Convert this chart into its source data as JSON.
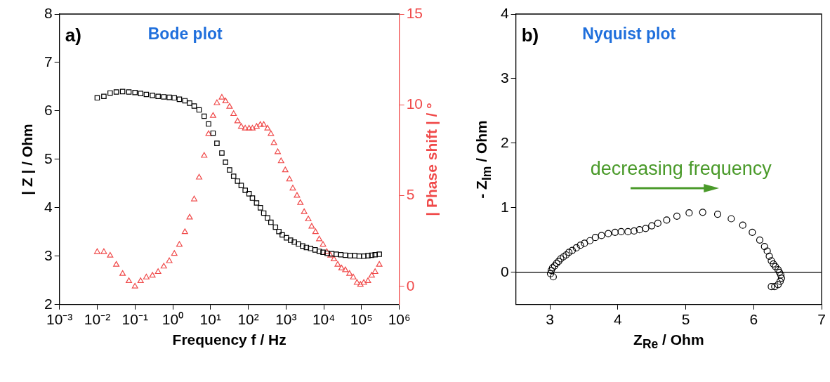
{
  "chart_data": [
    {
      "type": "scatter",
      "title": "Bode plot",
      "xlabel": "Frequency f / Hz",
      "ylabel": "| Z | / Ohm",
      "y2label": "| Phase shift | / °",
      "annotations": [
        "a)"
      ],
      "log": "x",
      "grid": false,
      "legend": false,
      "xlim": [
        0.001,
        1000000
      ],
      "xticks": [
        {
          "value": 0.001,
          "label": "10⁻³"
        },
        {
          "value": 0.01,
          "label": "10⁻²"
        },
        {
          "value": 0.1,
          "label": "10⁻¹"
        },
        {
          "value": 1,
          "label": "10⁰"
        },
        {
          "value": 10,
          "label": "10¹"
        },
        {
          "value": 100,
          "label": "10²"
        },
        {
          "value": 1000,
          "label": "10³"
        },
        {
          "value": 10000,
          "label": "10⁴"
        },
        {
          "value": 100000,
          "label": "10⁵"
        },
        {
          "value": 1000000,
          "label": "10⁶"
        }
      ],
      "ylim": [
        2,
        8
      ],
      "yticks": [
        2,
        3,
        4,
        5,
        6,
        7,
        8
      ],
      "y2lim": [
        -1,
        15
      ],
      "y2ticks": [
        0,
        5,
        10,
        15
      ],
      "series": [
        {
          "color": "#000000",
          "marker": "square",
          "x": [
            0.01,
            0.015,
            0.022,
            0.032,
            0.047,
            0.069,
            0.1,
            0.141,
            0.2,
            0.29,
            0.41,
            0.58,
            0.81,
            1.1,
            1.5,
            2.1,
            2.8,
            3.7,
            5.0,
            6.8,
            8.9,
            11.7,
            14.8,
            20,
            25,
            32,
            41,
            52,
            65,
            83,
            105,
            129,
            166,
            209,
            257,
            324,
            398,
            525,
            646,
            794,
            1023,
            1318,
            1660,
            2138,
            2754,
            3467,
            4467,
            5888,
            7586,
            9550,
            12300,
            16200,
            21400,
            28200,
            37200,
            50100,
            66100,
            87100,
            115000,
            148000,
            186000,
            229000,
            295000
          ],
          "values": [
            6.27,
            6.3,
            6.37,
            6.39,
            6.4,
            6.39,
            6.38,
            6.36,
            6.34,
            6.32,
            6.3,
            6.29,
            6.28,
            6.27,
            6.24,
            6.21,
            6.16,
            6.1,
            6.02,
            5.89,
            5.73,
            5.54,
            5.33,
            5.13,
            4.94,
            4.78,
            4.65,
            4.55,
            4.46,
            4.36,
            4.29,
            4.2,
            4.1,
            4.0,
            3.89,
            3.79,
            3.7,
            3.6,
            3.51,
            3.44,
            3.38,
            3.33,
            3.29,
            3.25,
            3.21,
            3.18,
            3.16,
            3.13,
            3.1,
            3.08,
            3.06,
            3.05,
            3.04,
            3.03,
            3.02,
            3.01,
            3.01,
            3.0,
            3.0,
            3.01,
            3.02,
            3.03,
            3.04
          ]
        },
        {
          "color": "#f04a4a",
          "marker": "triangle",
          "axis": "y2",
          "x": [
            0.01,
            0.015,
            0.022,
            0.032,
            0.047,
            0.069,
            0.1,
            0.141,
            0.2,
            0.29,
            0.41,
            0.58,
            0.81,
            1.1,
            1.5,
            2.1,
            2.8,
            3.7,
            5.0,
            6.8,
            8.9,
            11.7,
            14.8,
            20,
            25,
            32,
            41,
            52,
            65,
            83,
            105,
            129,
            166,
            209,
            257,
            324,
            398,
            479,
            603,
            741,
            955,
            1230,
            1514,
            1950,
            2399,
            3020,
            3890,
            4786,
            6026,
            7586,
            9550,
            12000,
            15100,
            18600,
            23400,
            29500,
            37200,
            47900,
            60300,
            75900,
            93300,
            115000,
            148000,
            186000,
            229000,
            295000
          ],
          "values": [
            1.9,
            1.9,
            1.7,
            1.2,
            0.7,
            0.3,
            0.0,
            0.3,
            0.5,
            0.6,
            0.8,
            1.1,
            1.4,
            1.8,
            2.3,
            3.0,
            3.8,
            4.8,
            6.0,
            7.2,
            8.4,
            9.4,
            10.1,
            10.4,
            10.2,
            9.9,
            9.5,
            9.1,
            8.8,
            8.7,
            8.7,
            8.7,
            8.8,
            8.9,
            8.9,
            8.7,
            8.4,
            7.9,
            7.4,
            6.9,
            6.4,
            5.9,
            5.4,
            5.0,
            4.6,
            4.1,
            3.7,
            3.3,
            3.0,
            2.6,
            2.3,
            1.9,
            1.7,
            1.5,
            1.2,
            1.0,
            0.9,
            0.7,
            0.5,
            0.2,
            0.1,
            0.2,
            0.3,
            0.6,
            0.8,
            1.2
          ]
        }
      ]
    },
    {
      "type": "scatter",
      "title": "Nyquist plot",
      "xlabel": "Z$_{Re}$ / Ohm",
      "ylabel": "- Z$_{Im}$ / Ohm",
      "annotations": [
        "b)",
        "decreasing frequency"
      ],
      "grid": false,
      "legend": false,
      "xlim": [
        2.5,
        7
      ],
      "xticks": [
        3,
        4,
        5,
        6,
        7
      ],
      "ylim": [
        -0.5,
        4
      ],
      "yticks": [
        0,
        1,
        2,
        3,
        4
      ],
      "ref_lines": [
        {
          "axis": "y",
          "value": 0,
          "color": "#000000"
        }
      ],
      "series": [
        {
          "color": "#000000",
          "marker": "circle",
          "x": [
            3.05,
            3.01,
            3.02,
            3.04,
            3.07,
            3.1,
            3.13,
            3.16,
            3.2,
            3.24,
            3.28,
            3.33,
            3.39,
            3.45,
            3.51,
            3.59,
            3.67,
            3.76,
            3.86,
            3.96,
            4.05,
            4.15,
            4.24,
            4.32,
            4.41,
            4.5,
            4.59,
            4.72,
            4.87,
            5.05,
            5.25,
            5.47,
            5.67,
            5.84,
            5.98,
            6.09,
            6.16,
            6.2,
            6.23,
            6.26,
            6.29,
            6.32,
            6.36,
            6.38,
            6.4,
            6.41,
            6.39,
            6.36,
            6.31,
            6.26
          ],
          "values": [
            -0.07,
            -0.02,
            0.03,
            0.07,
            0.1,
            0.14,
            0.17,
            0.21,
            0.24,
            0.27,
            0.31,
            0.34,
            0.38,
            0.42,
            0.45,
            0.49,
            0.54,
            0.57,
            0.6,
            0.62,
            0.63,
            0.63,
            0.64,
            0.66,
            0.68,
            0.72,
            0.76,
            0.81,
            0.87,
            0.92,
            0.93,
            0.9,
            0.83,
            0.73,
            0.62,
            0.5,
            0.4,
            0.33,
            0.25,
            0.18,
            0.13,
            0.09,
            0.04,
            0.0,
            -0.04,
            -0.09,
            -0.14,
            -0.19,
            -0.22,
            -0.22
          ]
        }
      ]
    }
  ]
}
